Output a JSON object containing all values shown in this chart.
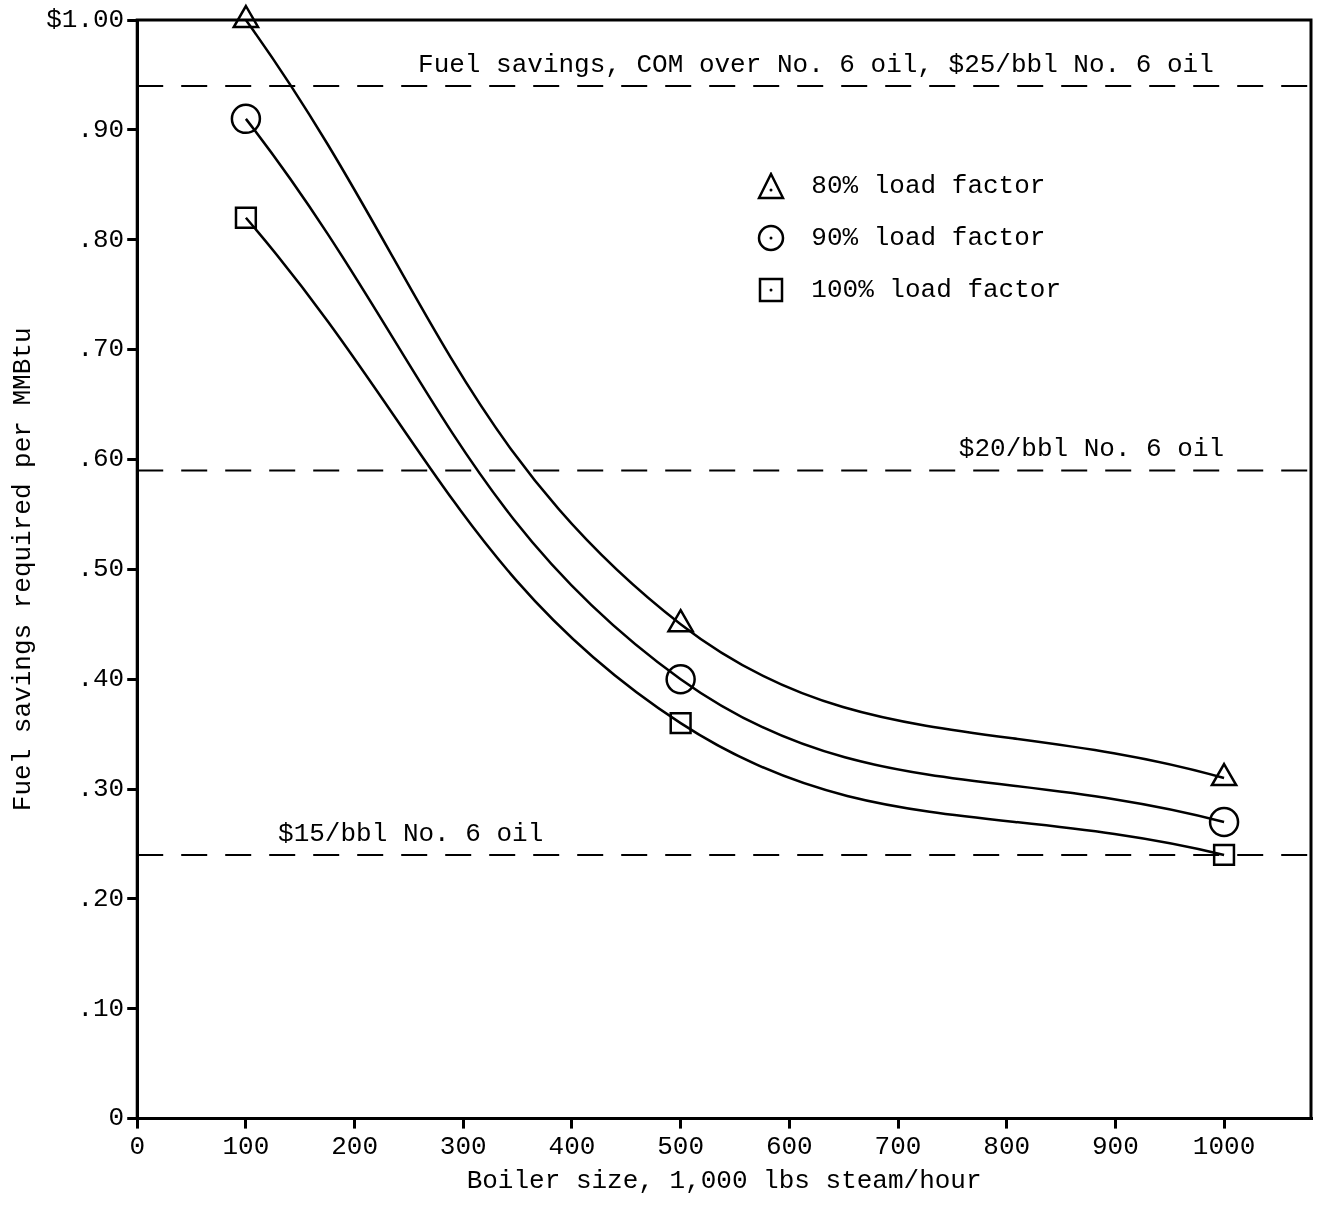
{
  "chart_data": {
    "type": "line",
    "xlabel": "Boiler size, 1,000 lbs steam/hour",
    "ylabel": "Fuel savings required per MMBtu",
    "x": [
      100,
      500,
      1000
    ],
    "series": [
      {
        "name": "80% load factor",
        "color": "#000000",
        "marker": "triangle",
        "values": [
          1.0,
          0.45,
          0.31
        ]
      },
      {
        "name": "90% load factor",
        "color": "#000000",
        "marker": "circle",
        "values": [
          0.91,
          0.4,
          0.27
        ]
      },
      {
        "name": "100% load factor",
        "color": "#000000",
        "marker": "square",
        "values": [
          0.82,
          0.36,
          0.24
        ]
      }
    ],
    "xlim": [
      0,
      1080
    ],
    "xticks": [
      0,
      100,
      200,
      300,
      400,
      500,
      600,
      700,
      800,
      900,
      1000
    ],
    "ylim": [
      0,
      1.0
    ],
    "yticks": [
      0,
      {
        "value": 0.1,
        "label": ".10"
      },
      {
        "value": 0.2,
        "label": ".20"
      },
      {
        "value": 0.3,
        "label": ".30"
      },
      {
        "value": 0.4,
        "label": ".40"
      },
      {
        "value": 0.5,
        "label": ".50"
      },
      {
        "value": 0.6,
        "label": ".60"
      },
      {
        "value": 0.7,
        "label": ".70"
      },
      {
        "value": 0.8,
        "label": ".80"
      },
      {
        "value": 0.9,
        "label": ".90"
      },
      {
        "value": 1.0,
        "label": "$1.00"
      }
    ],
    "ref_lines": [
      {
        "axis": "y",
        "value": 0.94,
        "label": "Fuel savings, COM over No. 6 oil, $25/bbl No. 6 oil",
        "line_style": "dashed"
      },
      {
        "axis": "y",
        "value": 0.59,
        "label": "$20/bbl No. 6 oil",
        "line_style": "dashed"
      },
      {
        "axis": "y",
        "value": 0.24,
        "label": "$15/bbl No. 6 oil",
        "line_style": "dashed"
      }
    ],
    "grid": false,
    "legend": "top right",
    "line_style": "solid"
  }
}
